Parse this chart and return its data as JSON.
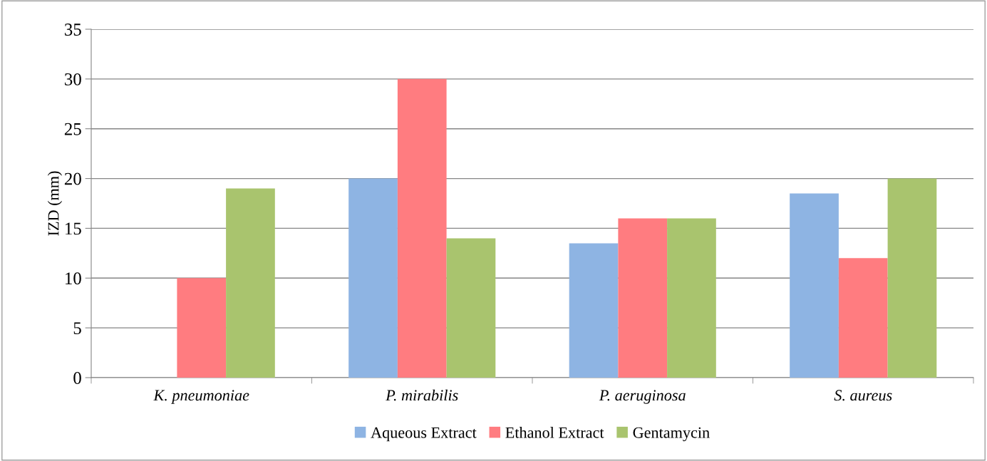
{
  "chart_data": {
    "type": "bar",
    "ylabel": "IZD (mm)",
    "categories": [
      "K. pneumoniae",
      "P. mirabilis",
      "P. aeruginosa",
      "S. aureus"
    ],
    "series": [
      {
        "name": "Aqueous Extract",
        "color": "#8eb4e3",
        "values": [
          0,
          20,
          13.5,
          18.5
        ]
      },
      {
        "name": "Ethanol Extract",
        "color": "#ff7c80",
        "values": [
          10,
          30,
          16,
          12
        ]
      },
      {
        "name": "Gentamycin",
        "color": "#a9c46e",
        "values": [
          19,
          14,
          16,
          20
        ]
      }
    ],
    "ylim": [
      0,
      35
    ],
    "yticks": [
      0,
      5,
      10,
      15,
      20,
      25,
      30,
      35
    ],
    "grid": "y",
    "legend": "bottom"
  }
}
